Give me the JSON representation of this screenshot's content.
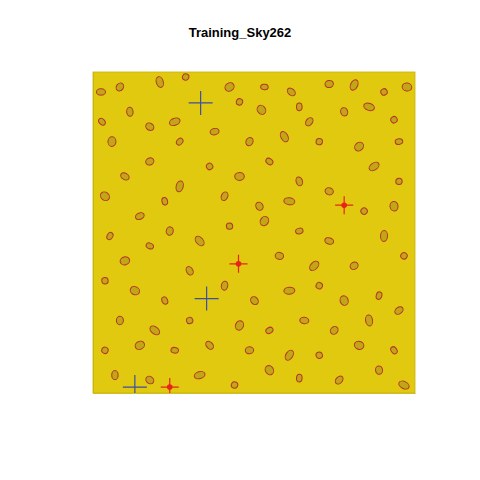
{
  "chart_data": {
    "type": "scatter",
    "title": "Training_Sky262",
    "xlim": [
      0,
      4200
    ],
    "ylim": [
      0,
      4200
    ],
    "tick_labels": false,
    "grid": false,
    "series": [
      {
        "color": "#b5332a",
        "marker": "ellipse",
        "x": [
          104,
          351,
          871,
          1209,
          1781,
          2236,
          2587,
          3081,
          3406,
          3796,
          4095,
          117,
          481,
          741,
          1066,
          1911,
          2197,
          2691,
          2821,
          3276,
          3601,
          3926,
          247,
          1131,
          1586,
          2041,
          2496,
          2951,
          3471,
          3991,
          416,
          741,
          1131,
          1521,
          1911,
          2301,
          2691,
          3081,
          3666,
          3991,
          156,
          936,
          1716,
          2171,
          2561,
          3536,
          3926,
          221,
          611,
          1001,
          1391,
          1781,
          2236,
          2691,
          3081,
          3406,
          3796,
          4056,
          416,
          741,
          1261,
          2431,
          2886,
          156,
          546,
          936,
          1716,
          2106,
          2561,
          2951,
          3276,
          3731,
          3991,
          351,
          806,
          1261,
          1911,
          2301,
          2756,
          3146,
          3601,
          156,
          611,
          1066,
          1521,
          2041,
          2561,
          2951,
          3471,
          3926,
          286,
          741,
          1391,
          1846,
          2301,
          2691,
          3211,
          3731,
          4056
        ],
        "values": [
          3939,
          4004,
          4069,
          4134,
          4004,
          4004,
          3939,
          4043,
          4030,
          3939,
          4004,
          3549,
          3679,
          3484,
          3549,
          3809,
          3705,
          3744,
          3549,
          3679,
          3744,
          3575,
          3289,
          3289,
          3419,
          3289,
          3354,
          3289,
          3224,
          3289,
          2834,
          3029,
          2704,
          2964,
          2834,
          3029,
          2769,
          2639,
          2964,
          2769,
          2574,
          2509,
          2574,
          2444,
          2509,
          2379,
          2444,
          2054,
          2314,
          2119,
          1989,
          2184,
          2249,
          2119,
          1989,
          1664,
          2054,
          1794,
          1729,
          1924,
          1599,
          1794,
          1664,
          1469,
          1339,
          1209,
          1404,
          1209,
          1339,
          1404,
          1209,
          1274,
          1079,
          949,
          819,
          949,
          884,
          819,
          949,
          819,
          949,
          559,
          624,
          559,
          624,
          559,
          494,
          494,
          624,
          559,
          234,
          169,
          234,
          104,
          299,
          195,
          169,
          299,
          104
        ]
      },
      {
        "color": "#3d4fa0",
        "marker": "cross",
        "x": [
          1404,
          1482,
          546
        ],
        "values": [
          3796,
          1235,
          78
        ]
      },
      {
        "color": "#e8231a",
        "marker": "cross-dot",
        "x": [
          3276,
          1898,
          1001
        ],
        "values": [
          2457,
          1690,
          78
        ]
      }
    ]
  }
}
